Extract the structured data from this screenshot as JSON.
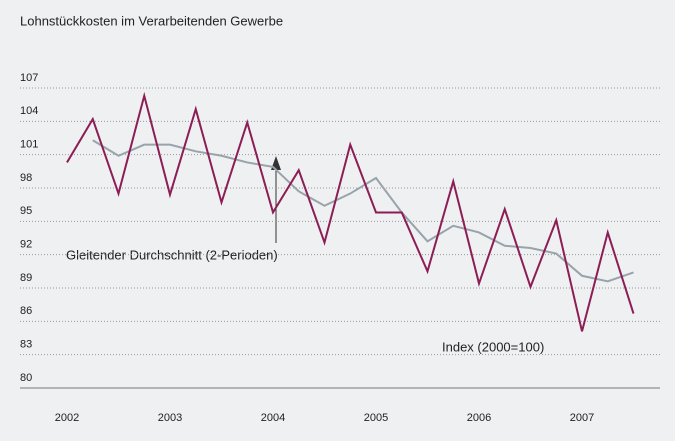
{
  "chart_data": {
    "type": "line",
    "title": "Lohnstückkosten im Verarbeitenden Gewerbe",
    "categories": [
      "2002",
      null,
      null,
      null,
      "2003",
      null,
      null,
      null,
      "2004",
      null,
      null,
      null,
      "2005",
      null,
      null,
      null,
      "2006",
      null,
      null,
      null,
      "2007",
      null,
      null
    ],
    "series": [
      {
        "name": "Index (2000=100)",
        "color": "#8c1d55",
        "values": [
          100.3,
          104.2,
          97.5,
          106.3,
          97.4,
          105.1,
          96.7,
          103.9,
          95.8,
          99.6,
          93.1,
          101.9,
          95.8,
          95.8,
          90.5,
          98.6,
          89.4,
          96.1,
          89.1,
          95.1,
          85.1,
          94.0,
          86.7
        ]
      },
      {
        "name": "Gleitender Durchschnitt (2-Perioden)",
        "color": "#98a4aa",
        "values": [
          null,
          102.3,
          100.9,
          101.9,
          101.9,
          101.3,
          100.9,
          100.3,
          99.9,
          97.7,
          96.4,
          97.5,
          98.9,
          95.8,
          93.2,
          94.6,
          94.0,
          92.8,
          92.6,
          92.1,
          90.1,
          89.6,
          90.4
        ]
      }
    ],
    "ylim": [
      80,
      107
    ],
    "yticks": [
      80,
      83,
      86,
      89,
      92,
      95,
      98,
      101,
      104,
      107
    ],
    "grid": true
  }
}
